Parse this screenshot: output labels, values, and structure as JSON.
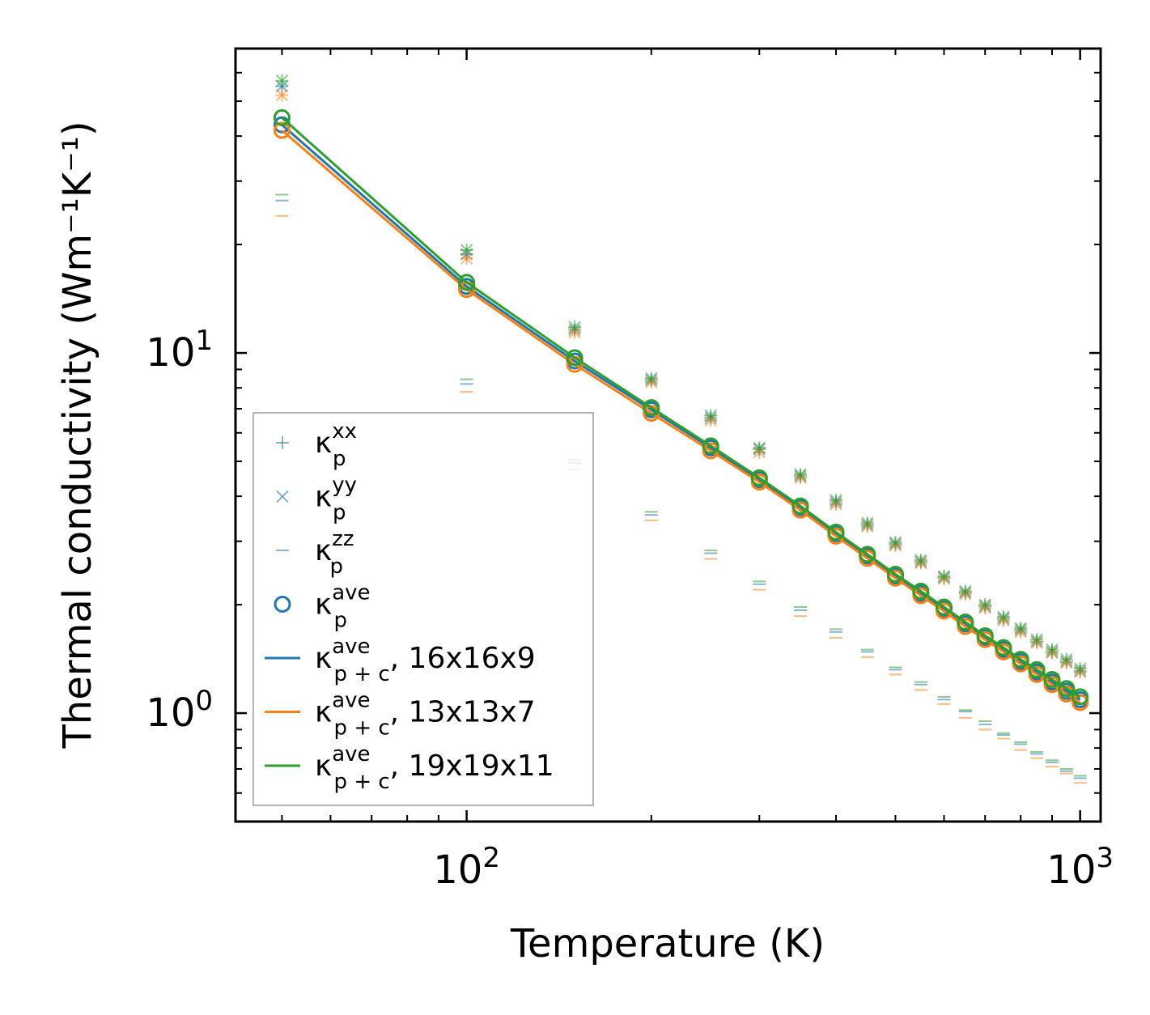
{
  "chart_data": {
    "type": "scatter",
    "xscale": "log",
    "yscale": "log",
    "xlim": [
      42,
      1080
    ],
    "ylim": [
      0.5,
      70
    ],
    "xlabel": "Temperature (K)",
    "ylabel": "Thermal conductivity (Wm⁻¹K⁻¹)",
    "x_ticks": [
      {
        "base": "10",
        "exp": "2",
        "value": 100
      },
      {
        "base": "10",
        "exp": "3",
        "value": 1000
      }
    ],
    "y_ticks": [
      {
        "base": "10",
        "exp": "0",
        "value": 1
      },
      {
        "base": "10",
        "exp": "1",
        "value": 10
      }
    ],
    "temperatures": [
      50,
      100,
      150,
      200,
      250,
      300,
      350,
      400,
      450,
      500,
      550,
      600,
      650,
      700,
      750,
      800,
      850,
      900,
      950,
      1000
    ],
    "colors": {
      "blue": "#1f77b4",
      "orange": "#ff7f0e",
      "green": "#2ca02c"
    },
    "series": [
      {
        "name": "16x16x9",
        "color_key": "blue",
        "kxx": [
          55.0,
          18.8,
          11.6,
          8.4,
          6.6,
          5.4,
          4.55,
          3.85,
          3.33,
          2.95,
          2.63,
          2.38,
          2.16,
          1.98,
          1.83,
          1.7,
          1.58,
          1.48,
          1.39,
          1.31
        ],
        "kyy": [
          55.0,
          18.8,
          11.6,
          8.4,
          6.6,
          5.4,
          4.55,
          3.85,
          3.33,
          2.95,
          2.63,
          2.38,
          2.16,
          1.98,
          1.83,
          1.7,
          1.58,
          1.48,
          1.39,
          1.31
        ],
        "kzz": [
          26.5,
          8.2,
          4.95,
          3.55,
          2.78,
          2.28,
          1.93,
          1.68,
          1.48,
          1.32,
          1.2,
          1.09,
          1.01,
          0.93,
          0.87,
          0.82,
          0.77,
          0.73,
          0.69,
          0.66
        ],
        "kave": [
          43.0,
          15.3,
          9.5,
          6.95,
          5.45,
          4.45,
          3.72,
          3.15,
          2.73,
          2.4,
          2.15,
          1.95,
          1.77,
          1.62,
          1.5,
          1.39,
          1.3,
          1.22,
          1.15,
          1.09
        ],
        "line": [
          43.0,
          15.3,
          9.5,
          6.95,
          5.45,
          4.45,
          3.72,
          3.15,
          2.73,
          2.4,
          2.15,
          1.95,
          1.77,
          1.62,
          1.5,
          1.39,
          1.3,
          1.22,
          1.15,
          1.09
        ]
      },
      {
        "name": "13x13x7",
        "color_key": "orange",
        "kxx": [
          52.0,
          18.3,
          11.4,
          8.3,
          6.5,
          5.3,
          4.5,
          3.8,
          3.3,
          2.92,
          2.61,
          2.36,
          2.14,
          1.96,
          1.81,
          1.68,
          1.57,
          1.47,
          1.38,
          1.3
        ],
        "kyy": [
          52.0,
          18.3,
          11.4,
          8.3,
          6.5,
          5.3,
          4.5,
          3.8,
          3.3,
          2.92,
          2.61,
          2.36,
          2.14,
          1.96,
          1.81,
          1.68,
          1.57,
          1.47,
          1.38,
          1.3
        ],
        "kzz": [
          24.0,
          7.8,
          4.75,
          3.43,
          2.68,
          2.2,
          1.86,
          1.62,
          1.43,
          1.28,
          1.16,
          1.06,
          0.97,
          0.9,
          0.85,
          0.79,
          0.75,
          0.71,
          0.68,
          0.64
        ],
        "kave": [
          41.5,
          15.0,
          9.3,
          6.8,
          5.35,
          4.38,
          3.66,
          3.1,
          2.69,
          2.37,
          2.12,
          1.92,
          1.74,
          1.6,
          1.48,
          1.37,
          1.28,
          1.2,
          1.13,
          1.07
        ],
        "line": [
          41.5,
          15.0,
          9.3,
          6.8,
          5.35,
          4.38,
          3.66,
          3.1,
          2.69,
          2.37,
          2.12,
          1.92,
          1.74,
          1.6,
          1.48,
          1.37,
          1.28,
          1.2,
          1.13,
          1.07
        ]
      },
      {
        "name": "19x19x11",
        "color_key": "green",
        "kxx": [
          57.0,
          19.3,
          11.8,
          8.5,
          6.7,
          5.45,
          4.6,
          3.9,
          3.37,
          2.98,
          2.66,
          2.4,
          2.18,
          2.0,
          1.85,
          1.72,
          1.6,
          1.5,
          1.41,
          1.33
        ],
        "kyy": [
          57.0,
          19.3,
          11.8,
          8.5,
          6.7,
          5.45,
          4.6,
          3.9,
          3.37,
          2.98,
          2.66,
          2.4,
          2.18,
          2.0,
          1.85,
          1.72,
          1.6,
          1.5,
          1.41,
          1.33
        ],
        "kzz": [
          27.5,
          8.45,
          5.05,
          3.62,
          2.83,
          2.32,
          1.97,
          1.71,
          1.5,
          1.34,
          1.22,
          1.11,
          1.02,
          0.95,
          0.88,
          0.83,
          0.78,
          0.74,
          0.7,
          0.67
        ],
        "kave": [
          45.0,
          15.7,
          9.7,
          7.05,
          5.52,
          4.5,
          3.76,
          3.18,
          2.76,
          2.43,
          2.18,
          1.97,
          1.79,
          1.64,
          1.52,
          1.41,
          1.32,
          1.24,
          1.17,
          1.11
        ],
        "line": [
          45.0,
          15.7,
          9.7,
          7.05,
          5.52,
          4.5,
          3.76,
          3.18,
          2.76,
          2.43,
          2.18,
          1.97,
          1.79,
          1.64,
          1.52,
          1.41,
          1.32,
          1.24,
          1.17,
          1.11
        ]
      }
    ],
    "legend": {
      "position": "lower-left",
      "entries": [
        {
          "kind": "plus",
          "color_key": "blue",
          "base": "κ",
          "sup": "xx",
          "sub": "p",
          "suffix": ""
        },
        {
          "kind": "cross",
          "color_key": "blue",
          "base": "κ",
          "sup": "yy",
          "sub": "p",
          "suffix": ""
        },
        {
          "kind": "dash",
          "color_key": "blue",
          "base": "κ",
          "sup": "zz",
          "sub": "p",
          "suffix": ""
        },
        {
          "kind": "circle",
          "color_key": "blue",
          "base": "κ",
          "sup": "ave",
          "sub": "p",
          "suffix": ""
        },
        {
          "kind": "line",
          "color_key": "blue",
          "base": "κ",
          "sup": "ave",
          "sub": "p + c",
          "suffix": ", 16x16x9"
        },
        {
          "kind": "line",
          "color_key": "orange",
          "base": "κ",
          "sup": "ave",
          "sub": "p + c",
          "suffix": ", 13x13x7"
        },
        {
          "kind": "line",
          "color_key": "green",
          "base": "κ",
          "sup": "ave",
          "sub": "p + c",
          "suffix": ", 19x19x11"
        }
      ]
    }
  }
}
